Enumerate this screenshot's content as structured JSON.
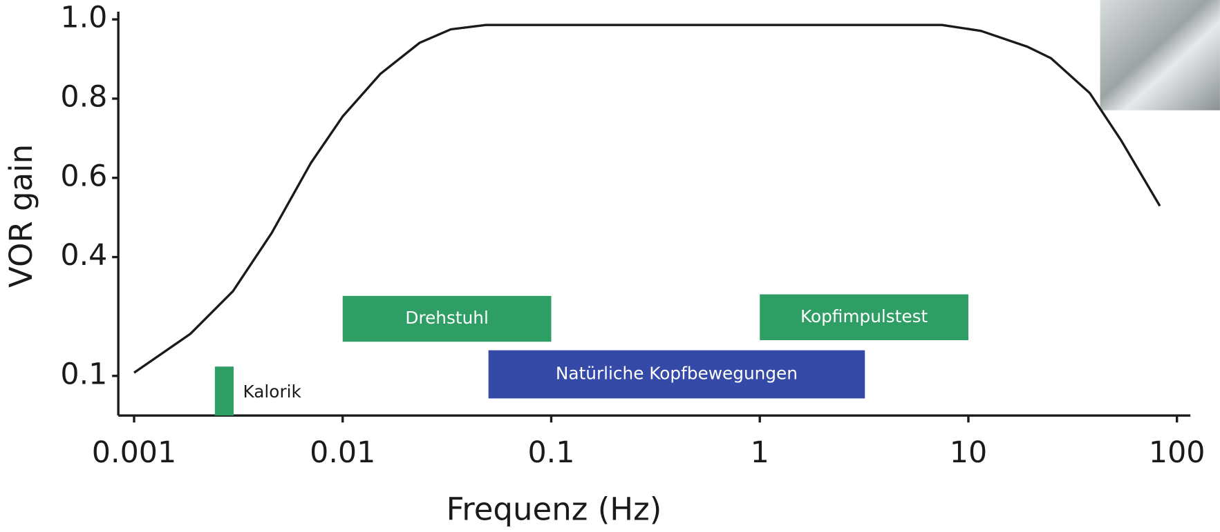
{
  "chart_data": {
    "type": "line",
    "xlabel": "Frequenz (Hz)",
    "ylabel": "VOR gain",
    "xscale": "log",
    "xlim": [
      0.00084,
      116
    ],
    "ylim": [
      0,
      1
    ],
    "xticks": [
      0.001,
      0.01,
      0.1,
      1,
      10,
      100
    ],
    "yticks": [
      {
        "value": 1,
        "label": "1.0"
      },
      0.8,
      0.6,
      0.4,
      0.1
    ],
    "series": [
      {
        "color": "#1a1a1a",
        "x": [
          0.001,
          0.00186,
          0.00298,
          0.00457,
          0.00703,
          0.01,
          0.0152,
          0.0234,
          0.033,
          0.0486,
          7.47,
          11.5,
          19.2,
          24.9,
          38.2,
          53.8,
          82.8
        ],
        "values": [
          0.108,
          0.206,
          0.314,
          0.461,
          0.637,
          0.755,
          0.863,
          0.941,
          0.975,
          0.986,
          0.986,
          0.971,
          0.931,
          0.902,
          0.814,
          0.696,
          0.529
        ]
      }
    ],
    "ranges": [
      {
        "label": "Kalorik",
        "from": 0.00244,
        "to": 0.003,
        "color": "#2e9e64"
      },
      {
        "label": "Drehstuhl",
        "from": 0.01,
        "to": 0.1,
        "color": "#2e9e64"
      },
      {
        "label": "Natürliche Kopfbewegungen",
        "from": 0.05,
        "to": 3.19,
        "color": "#3549a6"
      },
      {
        "label": "Kopfimpulstest",
        "from": 1,
        "to": 10,
        "color": "#2e9e64"
      }
    ]
  }
}
